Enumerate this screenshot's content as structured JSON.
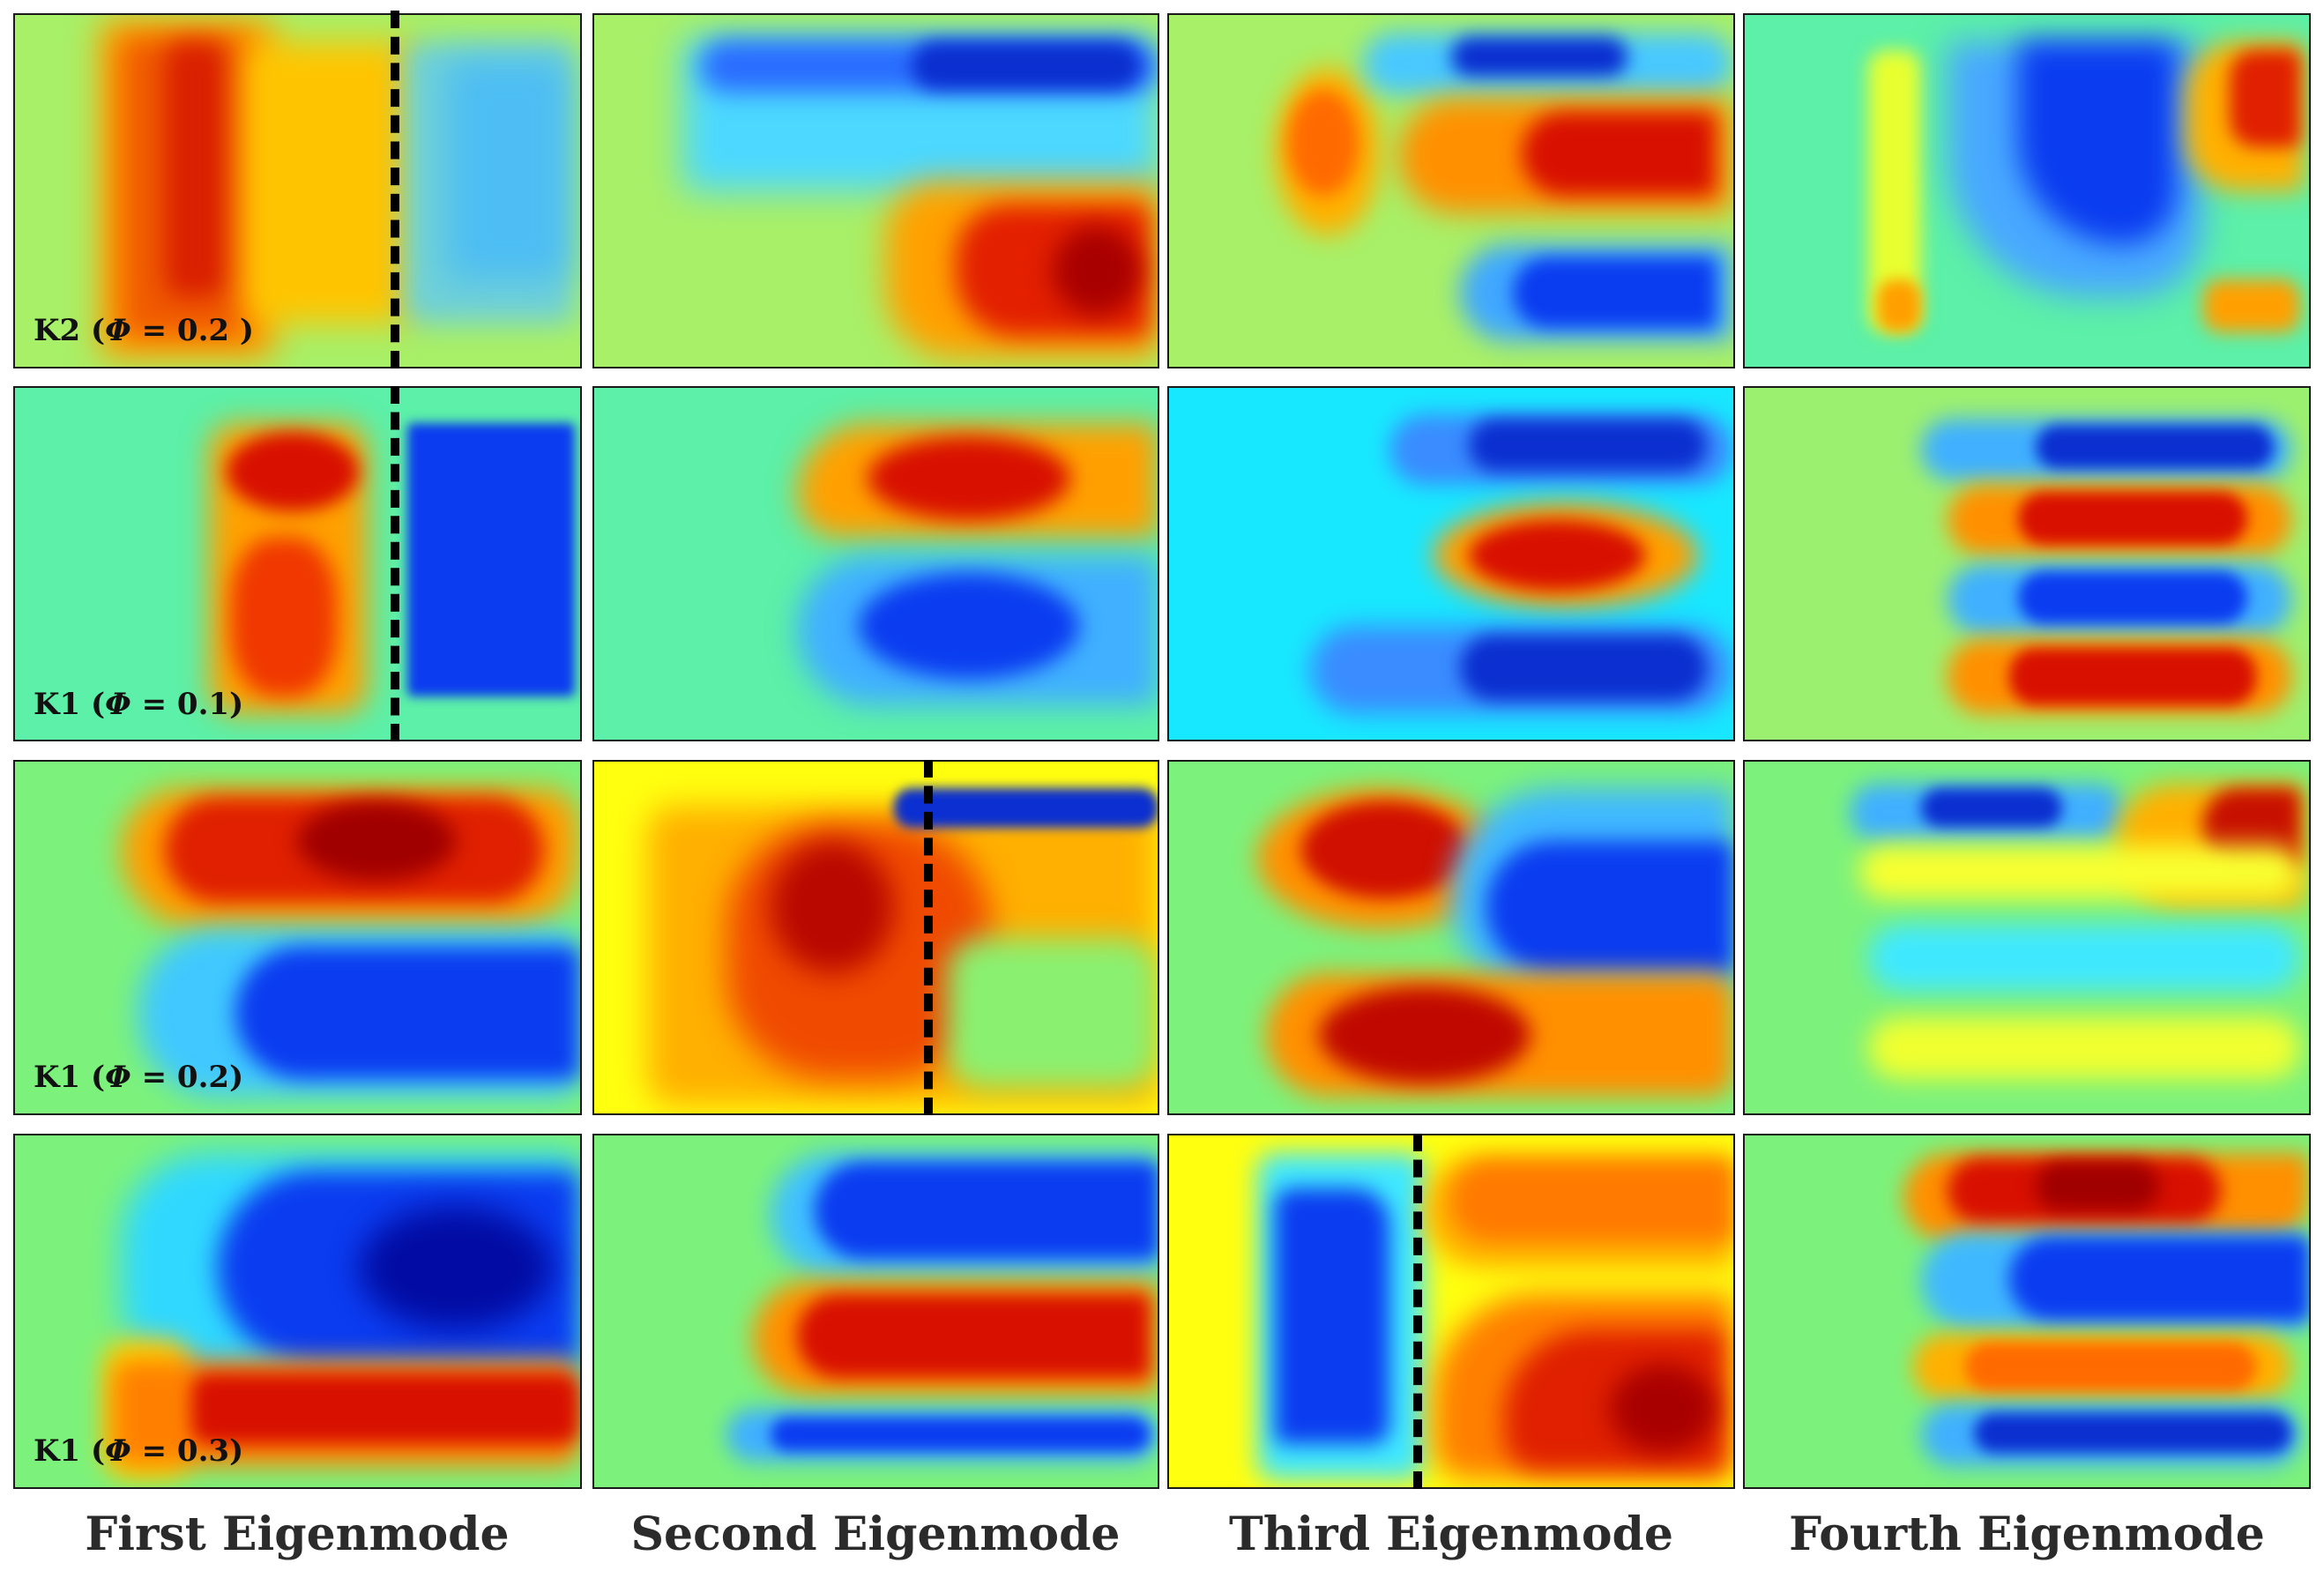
{
  "row_labels": [
    {
      "prefix": "K2 (",
      "symbol": "Φ",
      "suffix": " = 0.2 )"
    },
    {
      "prefix": "K1 (",
      "symbol": "Φ",
      "suffix": " = 0.1)"
    },
    {
      "prefix": "K1 (",
      "symbol": "Φ",
      "suffix": " = 0.2)"
    },
    {
      "prefix": "K1 (",
      "symbol": "Φ",
      "suffix": " = 0.3)"
    }
  ],
  "column_labels": [
    "First Eigenmode",
    "Second Eigenmode",
    "Third Eigenmode",
    "Fourth Eigenmode"
  ],
  "colormap": "jet",
  "colors": {
    "dark_red": "#a30000",
    "red": "#e0200a",
    "orange": "#ff9000",
    "yellow": "#ffff00",
    "light_green": "#a8f550",
    "neutral_green": "#7cf27c",
    "cyan": "#00f0ff",
    "light_blue": "#40a8ff",
    "blue": "#0a3cf0",
    "dark_blue": "#00008f",
    "dashed_line": "#000000"
  }
}
